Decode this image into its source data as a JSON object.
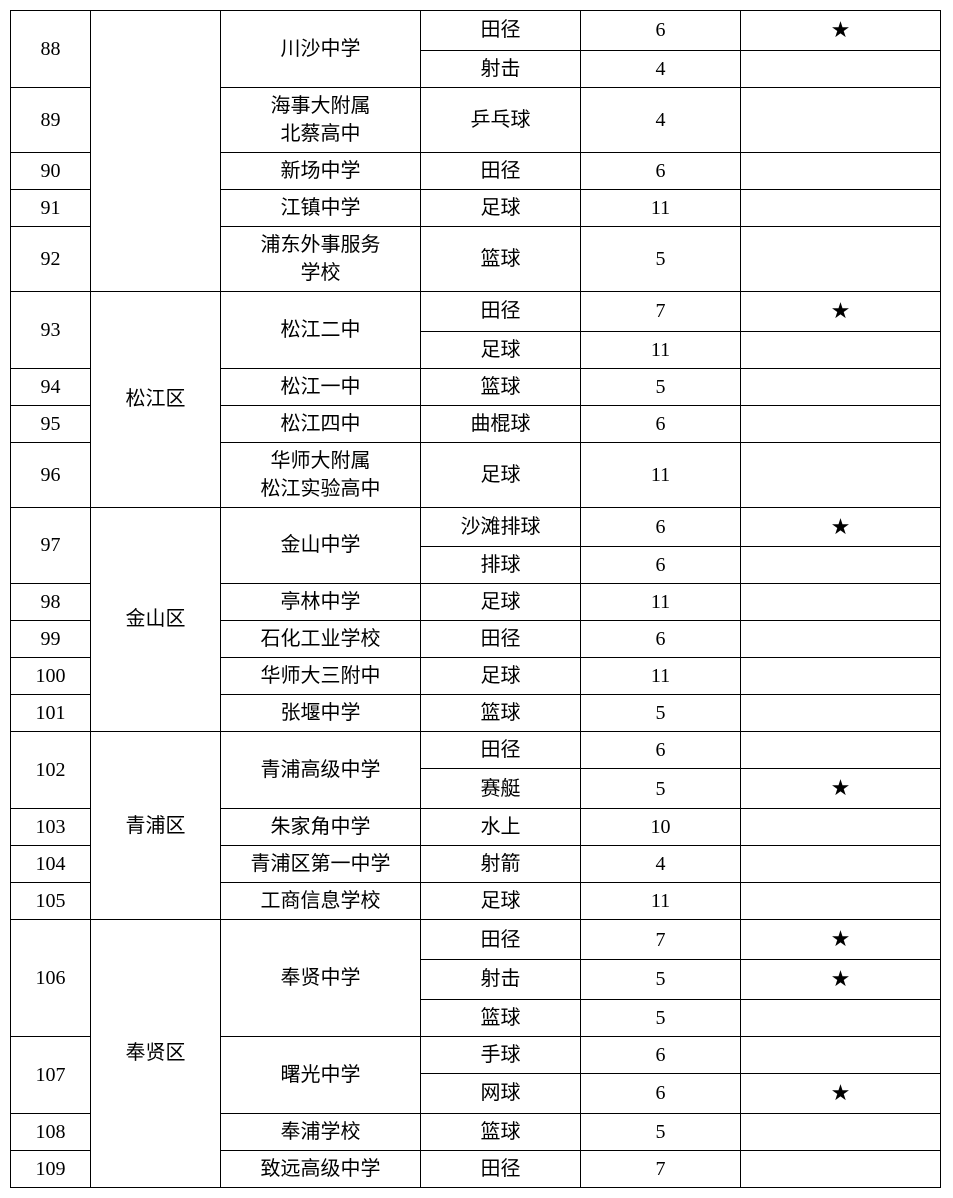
{
  "star": "★",
  "districts": {
    "songjiang": "松江区",
    "jinshan": "金山区",
    "qingpu": "青浦区",
    "fengxian": "奉贤区"
  },
  "rows": [
    {
      "idx": "88",
      "district": "",
      "school": "川沙中学",
      "sport": "田径",
      "count": "6",
      "starred": true
    },
    {
      "idx": "",
      "district": "",
      "school": "",
      "sport": "射击",
      "count": "4",
      "starred": false
    },
    {
      "idx": "89",
      "district": "",
      "school": "海事大附属\n北蔡高中",
      "sport": "乒乓球",
      "count": "4",
      "starred": false
    },
    {
      "idx": "90",
      "district": "",
      "school": "新场中学",
      "sport": "田径",
      "count": "6",
      "starred": false
    },
    {
      "idx": "91",
      "district": "",
      "school": "江镇中学",
      "sport": "足球",
      "count": "11",
      "starred": false
    },
    {
      "idx": "92",
      "district": "",
      "school": "浦东外事服务\n学校",
      "sport": "篮球",
      "count": "5",
      "starred": false
    },
    {
      "idx": "93",
      "district": "松江区",
      "school": "松江二中",
      "sport": "田径",
      "count": "7",
      "starred": true
    },
    {
      "idx": "",
      "district": "",
      "school": "",
      "sport": "足球",
      "count": "11",
      "starred": false
    },
    {
      "idx": "94",
      "district": "",
      "school": "松江一中",
      "sport": "篮球",
      "count": "5",
      "starred": false
    },
    {
      "idx": "95",
      "district": "",
      "school": "松江四中",
      "sport": "曲棍球",
      "count": "6",
      "starred": false
    },
    {
      "idx": "96",
      "district": "",
      "school": "华师大附属\n松江实验高中",
      "sport": "足球",
      "count": "11",
      "starred": false
    },
    {
      "idx": "97",
      "district": "金山区",
      "school": "金山中学",
      "sport": "沙滩排球",
      "count": "6",
      "starred": true
    },
    {
      "idx": "",
      "district": "",
      "school": "",
      "sport": "排球",
      "count": "6",
      "starred": false
    },
    {
      "idx": "98",
      "district": "",
      "school": "亭林中学",
      "sport": "足球",
      "count": "11",
      "starred": false
    },
    {
      "idx": "99",
      "district": "",
      "school": "石化工业学校",
      "sport": "田径",
      "count": "6",
      "starred": false
    },
    {
      "idx": "100",
      "district": "",
      "school": "华师大三附中",
      "sport": "足球",
      "count": "11",
      "starred": false
    },
    {
      "idx": "101",
      "district": "",
      "school": "张堰中学",
      "sport": "篮球",
      "count": "5",
      "starred": false
    },
    {
      "idx": "102",
      "district": "青浦区",
      "school": "青浦高级中学",
      "sport": "田径",
      "count": "6",
      "starred": false
    },
    {
      "idx": "",
      "district": "",
      "school": "",
      "sport": "赛艇",
      "count": "5",
      "starred": true
    },
    {
      "idx": "103",
      "district": "",
      "school": "朱家角中学",
      "sport": "水上",
      "count": "10",
      "starred": false
    },
    {
      "idx": "104",
      "district": "",
      "school": "青浦区第一中学",
      "sport": "射箭",
      "count": "4",
      "starred": false
    },
    {
      "idx": "105",
      "district": "",
      "school": "工商信息学校",
      "sport": "足球",
      "count": "11",
      "starred": false
    },
    {
      "idx": "106",
      "district": "奉贤区",
      "school": "奉贤中学",
      "sport": "田径",
      "count": "7",
      "starred": true
    },
    {
      "idx": "",
      "district": "",
      "school": "",
      "sport": "射击",
      "count": "5",
      "starred": true
    },
    {
      "idx": "",
      "district": "",
      "school": "",
      "sport": "篮球",
      "count": "5",
      "starred": false
    },
    {
      "idx": "107",
      "district": "",
      "school": "曙光中学",
      "sport": "手球",
      "count": "6",
      "starred": false
    },
    {
      "idx": "",
      "district": "",
      "school": "",
      "sport": "网球",
      "count": "6",
      "starred": true
    },
    {
      "idx": "108",
      "district": "",
      "school": "奉浦学校",
      "sport": "篮球",
      "count": "5",
      "starred": false
    },
    {
      "idx": "109",
      "district": "",
      "school": "致远高级中学",
      "sport": "田径",
      "count": "7",
      "starred": false
    }
  ]
}
